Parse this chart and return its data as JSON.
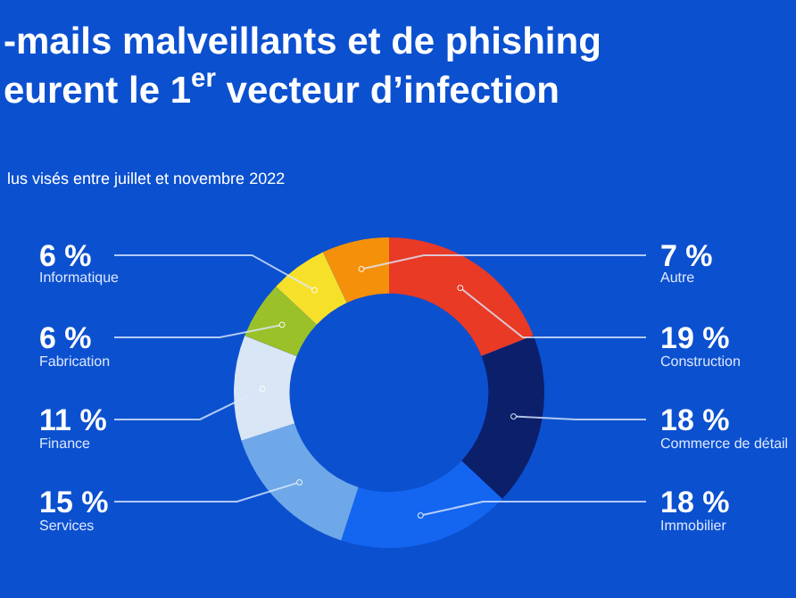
{
  "chart_data": {
    "type": "donut",
    "title": "-mails malveillants et de phishing\neurent le 1$^{er}$ vecteur d’infection",
    "subtitle": "lus visés entre juillet et novembre 2022",
    "categories": [
      "Autre",
      "Construction",
      "Commerce de détail",
      "Immobilier",
      "Services",
      "Finance",
      "Fabrication",
      "Informatique"
    ],
    "values": [
      7,
      19,
      18,
      18,
      15,
      11,
      6,
      6
    ],
    "value_labels": [
      "7 %",
      "19 %",
      "18 %",
      "18 %",
      "15 %",
      "11 %",
      "6 %",
      "6 %"
    ],
    "colors": [
      "#f5900a",
      "#e83a25",
      "#0b1f6b",
      "#1466f0",
      "#6fa8e8",
      "#d8e6f5",
      "#9bc12a",
      "#f7e02a"
    ],
    "legend": false
  }
}
